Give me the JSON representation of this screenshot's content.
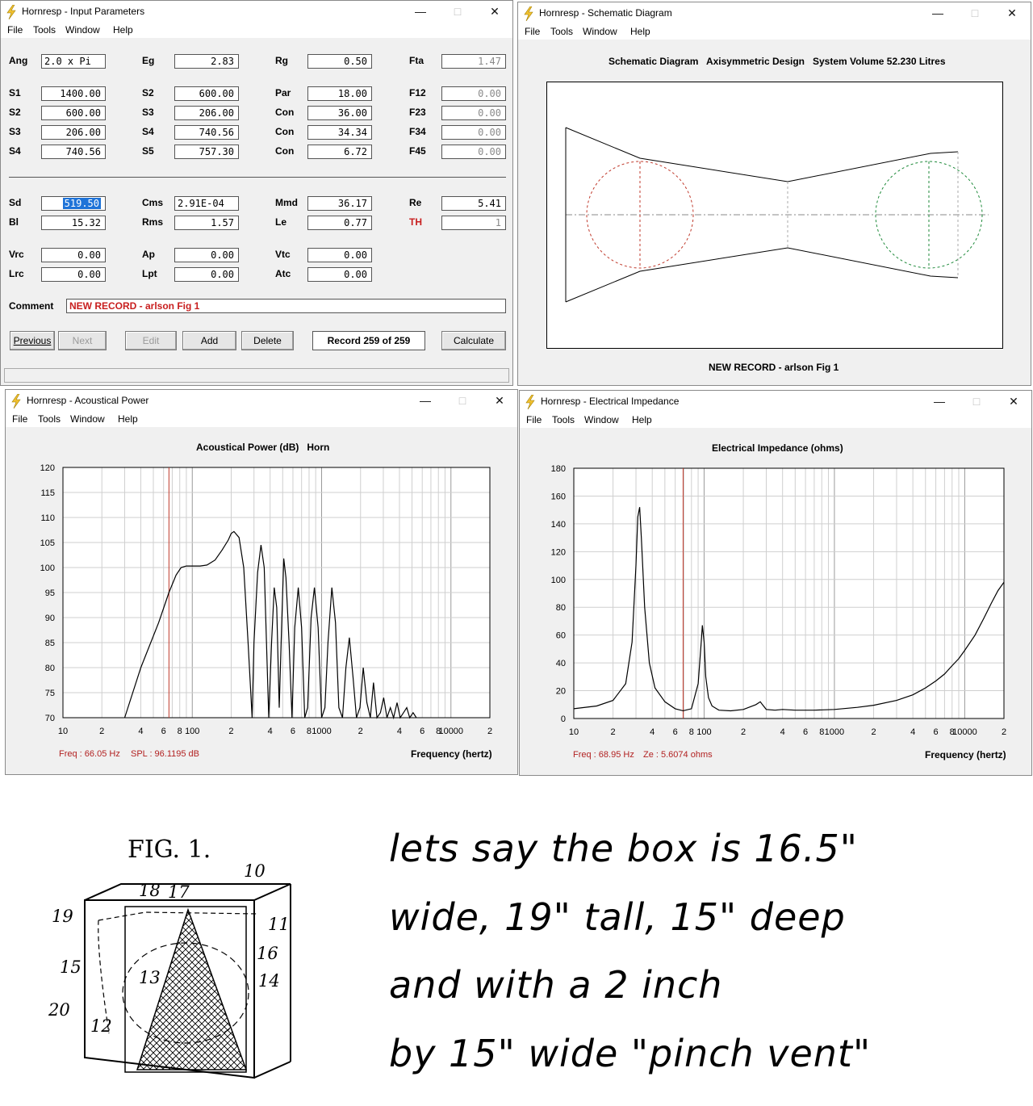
{
  "input_window": {
    "title": "Hornresp - Input Parameters",
    "menu": [
      "File",
      "Tools",
      "Window",
      "Help"
    ],
    "rows": [
      [
        {
          "l": "Ang",
          "v": "2.0 x Pi",
          "left": true
        },
        {
          "l": "Eg",
          "v": "2.83"
        },
        {
          "l": "Rg",
          "v": "0.50"
        },
        {
          "l": "Fta",
          "v": "1.47",
          "dis": true
        }
      ],
      [
        {
          "l": "S1",
          "v": "1400.00"
        },
        {
          "l": "S2",
          "v": "600.00"
        },
        {
          "l": "Par",
          "v": "18.00"
        },
        {
          "l": "F12",
          "v": "0.00",
          "dis": true
        }
      ],
      [
        {
          "l": "S2",
          "v": "600.00"
        },
        {
          "l": "S3",
          "v": "206.00"
        },
        {
          "l": "Con",
          "v": "36.00"
        },
        {
          "l": "F23",
          "v": "0.00",
          "dis": true
        }
      ],
      [
        {
          "l": "S3",
          "v": "206.00"
        },
        {
          "l": "S4",
          "v": "740.56"
        },
        {
          "l": "Con",
          "v": "34.34"
        },
        {
          "l": "F34",
          "v": "0.00",
          "dis": true
        }
      ],
      [
        {
          "l": "S4",
          "v": "740.56"
        },
        {
          "l": "S5",
          "v": "757.30"
        },
        {
          "l": "Con",
          "v": "6.72"
        },
        {
          "l": "F45",
          "v": "0.00",
          "dis": true
        }
      ],
      [
        {
          "l": "Sd",
          "v": "519.50",
          "sel": true
        },
        {
          "l": "Cms",
          "v": "2.91E-04",
          "left": true
        },
        {
          "l": "Mmd",
          "v": "36.17"
        },
        {
          "l": "Re",
          "v": "5.41"
        }
      ],
      [
        {
          "l": "Bl",
          "v": "15.32"
        },
        {
          "l": "Rms",
          "v": "1.57"
        },
        {
          "l": "Le",
          "v": "0.77"
        },
        {
          "l": "TH",
          "v": "1",
          "dis": true,
          "red": true
        }
      ],
      [
        {
          "l": "Vrc",
          "v": "0.00"
        },
        {
          "l": "Ap",
          "v": "0.00"
        },
        {
          "l": "Vtc",
          "v": "0.00"
        }
      ],
      [
        {
          "l": "Lrc",
          "v": "0.00"
        },
        {
          "l": "Lpt",
          "v": "0.00"
        },
        {
          "l": "Atc",
          "v": "0.00"
        }
      ]
    ],
    "comment_label": "Comment",
    "comment_value": "NEW RECORD - arlson Fig 1",
    "buttons": {
      "previous": "Previous",
      "next": "Next",
      "edit": "Edit",
      "add": "Add",
      "delete": "Delete",
      "record": "Record 259 of 259",
      "calculate": "Calculate"
    }
  },
  "schematic_window": {
    "title": "Hornresp - Schematic Diagram",
    "menu": [
      "File",
      "Tools",
      "Window",
      "Help"
    ],
    "heading": "Schematic Diagram   Axisymmetric Design   System Volume 52.230 Litres",
    "footer": "NEW RECORD - arlson Fig 1"
  },
  "power_window": {
    "title": "Hornresp - Acoustical Power",
    "menu": [
      "File",
      "Tools",
      "Window",
      "Help"
    ],
    "status_freq": "Freq : 66.05 Hz",
    "status_val": "SPL : 96.1195 dB"
  },
  "impedance_window": {
    "title": "Hornresp - Electrical Impedance",
    "menu": [
      "File",
      "Tools",
      "Window",
      "Help"
    ],
    "status_freq": "Freq : 68.95 Hz",
    "status_val": "Ze : 5.6074 ohms"
  },
  "chart_data": [
    {
      "type": "line",
      "title": "Acoustical Power (dB)   Horn",
      "xlabel": "Frequency (hertz)",
      "ylabel": "",
      "xscale": "log",
      "xlim": [
        10,
        20000
      ],
      "ylim": [
        70,
        120
      ],
      "yticks": [
        "120",
        "115",
        "110",
        "105",
        "100",
        "95",
        "90",
        "85",
        "80",
        "75",
        "70"
      ],
      "xticks": [
        "10",
        "2",
        "4",
        "6",
        "8",
        "100",
        "2",
        "4",
        "6",
        "8",
        "1000",
        "2",
        "4",
        "6",
        "8",
        "10000",
        "2"
      ],
      "marker_x": 66,
      "x": [
        30,
        40,
        55,
        66,
        75,
        82,
        90,
        100,
        115,
        130,
        150,
        170,
        190,
        200,
        210,
        230,
        250,
        270,
        290,
        300,
        320,
        340,
        360,
        375,
        390,
        410,
        430,
        450,
        470,
        490,
        510,
        530,
        560,
        590,
        620,
        660,
        700,
        740,
        780,
        830,
        880,
        940,
        1000,
        1060,
        1120,
        1200,
        1280,
        1360,
        1450,
        1540,
        1640,
        1750,
        1860,
        1980,
        2100,
        2240,
        2380,
        2520,
        2680,
        2850,
        3020,
        3200,
        3400,
        3600,
        3830,
        4050,
        4300,
        4550,
        4800,
        5100,
        5400
      ],
      "y": [
        70,
        80,
        89,
        95,
        98.5,
        100,
        100.3,
        100.3,
        100.3,
        100.5,
        101.5,
        103.5,
        105.5,
        106.8,
        107.2,
        106,
        100,
        85,
        70,
        85,
        99,
        104.5,
        100,
        85,
        70,
        85,
        96,
        92,
        72,
        88,
        101.8,
        98,
        85,
        70,
        88,
        96,
        88,
        70,
        72,
        90,
        96,
        88,
        70,
        72,
        85,
        96,
        89,
        72,
        70,
        80,
        86,
        78,
        70,
        72,
        80,
        73,
        70,
        77,
        70,
        71,
        74,
        70,
        72,
        70,
        73,
        70,
        71,
        72,
        70,
        71,
        70
      ]
    },
    {
      "type": "line",
      "title": "Electrical Impedance (ohms)",
      "xlabel": "Frequency (hertz)",
      "ylabel": "",
      "xscale": "log",
      "xlim": [
        10,
        20000
      ],
      "ylim": [
        0,
        180
      ],
      "yticks": [
        "180",
        "160",
        "140",
        "120",
        "100",
        "80",
        "60",
        "40",
        "20",
        "0"
      ],
      "xticks": [
        "10",
        "2",
        "4",
        "6",
        "8",
        "100",
        "2",
        "4",
        "6",
        "8",
        "1000",
        "2",
        "4",
        "6",
        "8",
        "10000",
        "2"
      ],
      "marker_x": 69,
      "x": [
        10,
        15,
        20,
        25,
        28,
        30,
        31,
        32,
        33,
        35,
        38,
        42,
        50,
        60,
        69,
        80,
        90,
        95,
        97,
        100,
        103,
        108,
        115,
        130,
        160,
        200,
        250,
        270,
        280,
        300,
        350,
        400,
        500,
        700,
        1000,
        1500,
        2000,
        3000,
        4000,
        5000,
        6000,
        7000,
        8000,
        9000,
        10000,
        12000,
        14000,
        16000,
        18000,
        20000
      ],
      "y": [
        7,
        9,
        13,
        25,
        55,
        110,
        145,
        152,
        130,
        80,
        40,
        22,
        12,
        7,
        5.6,
        7,
        25,
        55,
        67,
        55,
        30,
        15,
        9,
        6,
        5.5,
        6.5,
        10,
        12,
        10,
        6.5,
        6,
        6.5,
        6,
        6,
        6.5,
        8,
        9.5,
        13,
        17,
        22,
        27,
        32,
        38,
        43,
        49,
        60,
        72,
        83,
        92,
        98
      ]
    }
  ],
  "sketch": {
    "fig_title": "FIG. 1.",
    "callouts": [
      "10",
      "11",
      "12",
      "13",
      "14",
      "15",
      "16",
      "17",
      "18",
      "19",
      "20"
    ],
    "note_lines": [
      "lets say the box is 16.5\"",
      "wide, 19\" tall, 15\" deep",
      "and with a 2 inch",
      "by 15\" wide \"pinch vent\""
    ]
  }
}
